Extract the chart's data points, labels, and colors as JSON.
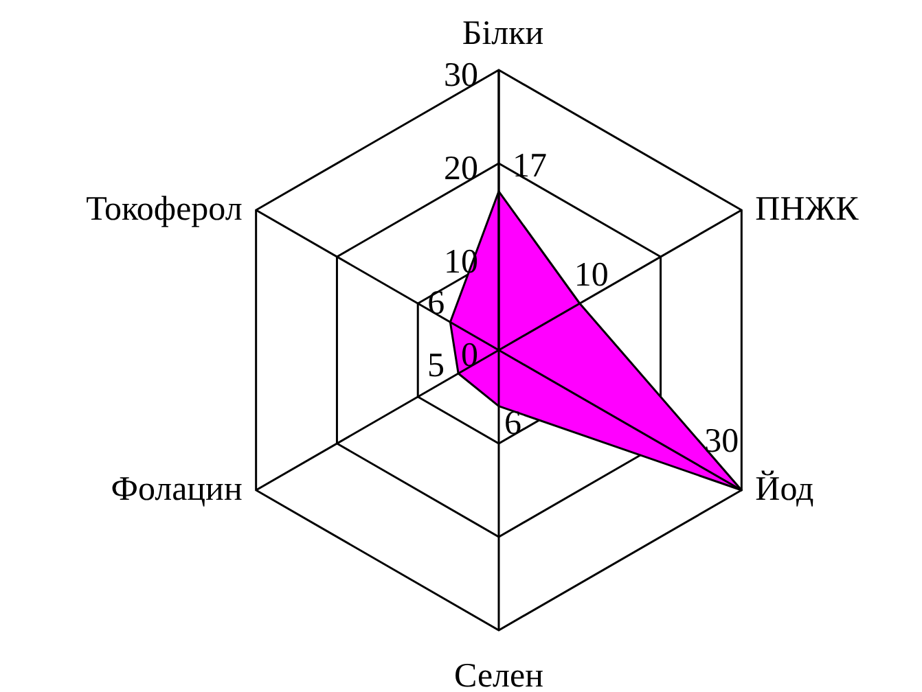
{
  "chart_data": {
    "type": "radar",
    "categories": [
      "Білки",
      "ПНЖК",
      "Йод",
      "Селен",
      "Фолацин",
      "Токоферол"
    ],
    "series": [
      {
        "color": "#ff00ff",
        "values": [
          17,
          10,
          30,
          6,
          5,
          6
        ]
      }
    ],
    "ylim": [
      0,
      30
    ],
    "yticks": [
      0,
      10,
      20,
      30
    ],
    "grid": true,
    "data_labels": true
  }
}
